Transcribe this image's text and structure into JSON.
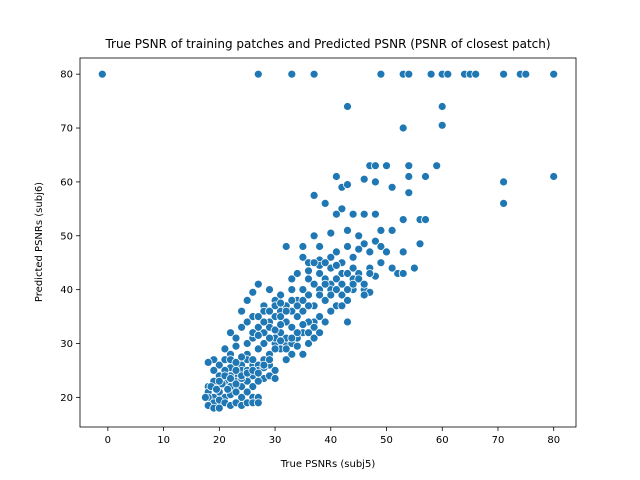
{
  "chart_data": {
    "type": "scatter",
    "title": "True PSNR of training patches and Predicted PSNR (PSNR of closest patch)",
    "xlabel": "True PSNRs (subj5)",
    "ylabel": "Predicted PSNRs (subj6)",
    "xlim": [
      -5,
      84
    ],
    "ylim": [
      14.5,
      83
    ],
    "xticks": [
      0,
      10,
      20,
      30,
      40,
      50,
      60,
      70,
      80
    ],
    "yticks": [
      20,
      30,
      40,
      50,
      60,
      70,
      80
    ],
    "grid": false,
    "marker_color": "#1f77b4",
    "marker_edge": "#ffffff",
    "points": [
      [
        -1,
        80
      ],
      [
        27,
        80
      ],
      [
        33,
        80
      ],
      [
        37,
        80
      ],
      [
        49,
        80
      ],
      [
        53,
        80
      ],
      [
        54,
        80
      ],
      [
        58,
        80
      ],
      [
        60,
        80
      ],
      [
        61,
        80
      ],
      [
        64,
        80
      ],
      [
        65,
        80
      ],
      [
        66,
        80
      ],
      [
        71,
        80
      ],
      [
        74,
        80
      ],
      [
        75,
        80
      ],
      [
        80,
        80
      ],
      [
        43,
        74
      ],
      [
        60,
        74
      ],
      [
        53,
        70
      ],
      [
        60,
        70.5
      ],
      [
        47,
        63
      ],
      [
        48,
        63
      ],
      [
        50,
        63
      ],
      [
        54,
        63
      ],
      [
        59,
        63
      ],
      [
        41,
        61
      ],
      [
        46,
        60.5
      ],
      [
        48,
        60
      ],
      [
        54,
        61
      ],
      [
        57,
        61
      ],
      [
        71,
        60
      ],
      [
        80,
        61
      ],
      [
        42,
        59
      ],
      [
        43,
        59.5
      ],
      [
        51,
        59
      ],
      [
        54,
        58
      ],
      [
        37,
        57.5
      ],
      [
        71,
        56
      ],
      [
        39,
        56
      ],
      [
        42,
        55
      ],
      [
        41,
        54
      ],
      [
        44,
        54
      ],
      [
        46,
        54
      ],
      [
        48,
        54
      ],
      [
        53,
        53
      ],
      [
        56,
        53
      ],
      [
        57,
        53
      ],
      [
        37,
        50
      ],
      [
        40,
        50.5
      ],
      [
        43,
        51
      ],
      [
        45,
        50
      ],
      [
        49,
        51
      ],
      [
        51,
        51
      ],
      [
        46,
        48.5
      ],
      [
        48,
        49
      ],
      [
        49,
        48
      ],
      [
        56,
        48.5
      ],
      [
        32,
        48
      ],
      [
        35,
        48
      ],
      [
        38,
        48
      ],
      [
        41,
        47
      ],
      [
        43,
        48
      ],
      [
        45,
        47.5
      ],
      [
        47,
        47
      ],
      [
        50,
        47
      ],
      [
        53,
        47
      ],
      [
        44,
        46
      ],
      [
        35,
        46
      ],
      [
        36,
        45
      ],
      [
        38,
        45.5
      ],
      [
        40,
        46
      ],
      [
        42,
        45
      ],
      [
        44,
        44
      ],
      [
        47,
        44
      ],
      [
        49,
        45
      ],
      [
        51,
        44
      ],
      [
        55,
        44
      ],
      [
        52,
        43
      ],
      [
        53,
        43
      ],
      [
        48,
        42.5
      ],
      [
        46,
        40
      ],
      [
        47,
        39.5
      ],
      [
        43,
        34
      ],
      [
        37,
        34
      ],
      [
        27,
        41
      ],
      [
        29,
        40
      ],
      [
        33,
        40
      ],
      [
        31,
        39
      ],
      [
        34,
        38
      ],
      [
        36,
        39
      ],
      [
        38,
        40
      ],
      [
        40,
        41
      ],
      [
        42,
        39
      ],
      [
        44,
        40
      ],
      [
        46,
        39
      ],
      [
        26,
        39.5
      ],
      [
        25,
        38
      ],
      [
        28,
        37
      ],
      [
        30,
        38
      ],
      [
        32,
        37
      ],
      [
        35,
        36
      ],
      [
        37,
        37
      ],
      [
        39,
        38
      ],
      [
        41,
        37
      ],
      [
        43,
        38
      ],
      [
        24,
        36
      ],
      [
        26,
        35
      ],
      [
        28,
        36
      ],
      [
        30,
        35
      ],
      [
        32,
        34
      ],
      [
        34,
        35
      ],
      [
        36,
        34
      ],
      [
        38,
        35
      ],
      [
        40,
        36
      ],
      [
        33,
        36
      ],
      [
        31,
        36
      ],
      [
        24,
        33
      ],
      [
        25,
        34
      ],
      [
        27,
        33
      ],
      [
        29,
        34
      ],
      [
        31,
        32
      ],
      [
        33,
        33
      ],
      [
        35,
        32
      ],
      [
        37,
        33
      ],
      [
        39,
        34
      ],
      [
        30,
        30
      ],
      [
        22,
        32
      ],
      [
        23,
        31
      ],
      [
        25,
        30
      ],
      [
        26,
        31
      ],
      [
        28,
        32
      ],
      [
        30,
        31
      ],
      [
        32,
        30
      ],
      [
        34,
        31
      ],
      [
        36,
        30
      ],
      [
        35,
        28
      ],
      [
        21,
        29
      ],
      [
        22,
        28
      ],
      [
        23,
        29.5
      ],
      [
        25,
        28
      ],
      [
        27,
        29
      ],
      [
        29,
        28
      ],
      [
        31,
        29
      ],
      [
        33,
        28
      ],
      [
        26,
        26
      ],
      [
        28,
        27
      ],
      [
        19,
        27
      ],
      [
        20,
        26
      ],
      [
        21,
        27
      ],
      [
        22,
        25.5
      ],
      [
        24,
        26
      ],
      [
        25,
        27
      ],
      [
        27,
        26
      ],
      [
        29,
        26
      ],
      [
        30,
        25
      ],
      [
        32,
        27
      ],
      [
        18,
        26.5
      ],
      [
        19,
        25
      ],
      [
        20,
        24
      ],
      [
        21,
        25
      ],
      [
        23,
        24
      ],
      [
        24,
        25
      ],
      [
        26,
        24
      ],
      [
        28,
        23.5
      ],
      [
        29,
        24
      ],
      [
        30,
        23.5
      ],
      [
        18,
        22
      ],
      [
        19,
        23
      ],
      [
        20,
        22
      ],
      [
        21,
        23
      ],
      [
        22,
        22
      ],
      [
        23,
        23
      ],
      [
        24,
        22
      ],
      [
        25,
        23
      ],
      [
        26,
        22
      ],
      [
        27,
        23
      ],
      [
        18,
        21
      ],
      [
        19,
        20
      ],
      [
        20,
        21
      ],
      [
        21,
        20
      ],
      [
        22,
        20.5
      ],
      [
        23,
        21
      ],
      [
        24,
        20
      ],
      [
        25,
        21
      ],
      [
        26,
        20
      ],
      [
        27,
        20
      ],
      [
        18,
        20
      ],
      [
        19,
        19
      ],
      [
        20,
        19.5
      ],
      [
        21,
        19
      ],
      [
        22,
        18.5
      ],
      [
        23,
        19
      ],
      [
        24,
        18.5
      ],
      [
        25,
        19
      ],
      [
        26,
        19
      ],
      [
        27,
        19
      ],
      [
        18,
        18.5
      ],
      [
        19,
        18
      ],
      [
        20,
        18
      ],
      [
        17.5,
        20
      ],
      [
        18.5,
        22
      ],
      [
        19.5,
        21.5
      ],
      [
        20.5,
        22.5
      ],
      [
        21.5,
        21.5
      ],
      [
        36,
        42
      ],
      [
        38,
        43
      ],
      [
        40,
        44
      ],
      [
        42,
        43
      ],
      [
        44,
        42
      ],
      [
        39,
        42
      ],
      [
        41,
        42
      ],
      [
        37,
        41
      ],
      [
        35,
        40
      ],
      [
        33,
        42
      ],
      [
        34,
        43
      ],
      [
        36,
        43.5
      ],
      [
        38,
        44.5
      ],
      [
        37,
        45
      ],
      [
        39,
        45
      ],
      [
        41,
        44.5
      ],
      [
        45,
        43
      ],
      [
        47,
        43
      ],
      [
        43,
        43
      ],
      [
        40,
        40
      ],
      [
        29,
        33
      ],
      [
        30,
        32.5
      ],
      [
        31,
        33.5
      ],
      [
        32,
        31
      ],
      [
        33,
        30
      ],
      [
        34,
        32
      ],
      [
        35,
        33.5
      ],
      [
        36,
        32
      ],
      [
        37,
        31
      ],
      [
        38,
        32
      ],
      [
        22,
        27
      ],
      [
        23,
        26.5
      ],
      [
        24,
        27.5
      ],
      [
        25,
        25
      ],
      [
        26,
        27
      ],
      [
        27,
        25
      ],
      [
        28,
        25.5
      ],
      [
        22,
        24
      ],
      [
        23,
        22.5
      ],
      [
        24,
        23.5
      ],
      [
        26,
        32
      ],
      [
        27,
        31.5
      ],
      [
        28,
        30
      ],
      [
        29,
        31
      ],
      [
        30,
        29
      ],
      [
        31,
        30.5
      ],
      [
        32,
        29
      ],
      [
        33,
        31
      ],
      [
        34,
        29.5
      ],
      [
        31,
        35
      ],
      [
        42,
        41
      ],
      [
        43,
        40
      ],
      [
        44,
        41
      ],
      [
        45,
        42
      ],
      [
        46,
        41
      ],
      [
        41,
        40
      ],
      [
        39,
        41
      ],
      [
        38,
        39
      ],
      [
        40,
        39
      ],
      [
        42,
        37
      ],
      [
        27,
        35
      ],
      [
        28,
        34
      ],
      [
        29,
        36
      ],
      [
        30,
        37
      ],
      [
        31,
        37.5
      ],
      [
        32,
        36
      ],
      [
        33,
        38
      ],
      [
        34,
        37
      ],
      [
        35,
        38
      ],
      [
        36,
        37
      ],
      [
        20,
        23
      ],
      [
        21,
        24
      ],
      [
        22,
        23.5
      ],
      [
        23,
        25
      ],
      [
        24,
        24
      ],
      [
        25,
        24.5
      ],
      [
        26,
        25
      ],
      [
        27,
        24.5
      ],
      [
        28,
        26
      ],
      [
        29,
        27
      ]
    ]
  }
}
